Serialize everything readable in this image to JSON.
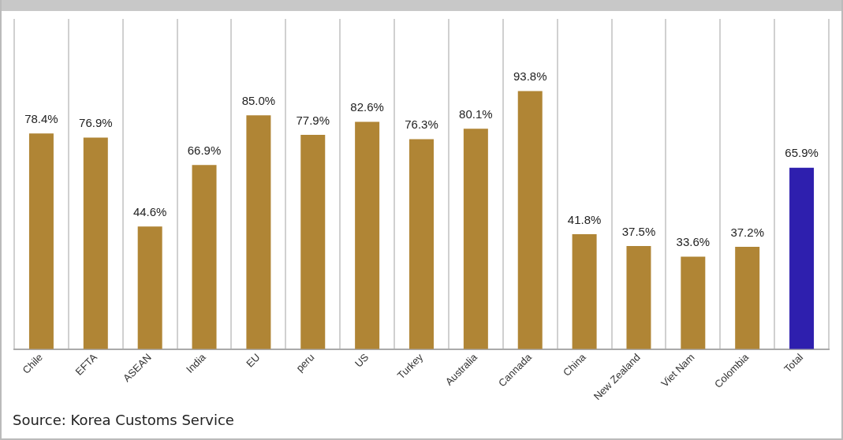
{
  "chart_data": {
    "type": "bar",
    "categories": [
      "Chile",
      "EFTA",
      "ASEAN",
      "India",
      "EU",
      "peru",
      "US",
      "Turkey",
      "Australia",
      "Cannada",
      "China",
      "New Zealand",
      "Viet Nam",
      "Colombia",
      "Total"
    ],
    "values": [
      78.4,
      76.9,
      44.6,
      66.9,
      85.0,
      77.9,
      82.6,
      76.3,
      80.1,
      93.8,
      41.8,
      37.5,
      33.6,
      37.2,
      65.9
    ],
    "colors": [
      "#b08535",
      "#b08535",
      "#b08535",
      "#b08535",
      "#b08535",
      "#b08535",
      "#b08535",
      "#b08535",
      "#b08535",
      "#b08535",
      "#b08535",
      "#b08535",
      "#b08535",
      "#b08535",
      "#2e1fae"
    ],
    "value_labels": [
      "78.4%",
      "76.9%",
      "44.6%",
      "66.9%",
      "85.0%",
      "77.9%",
      "82.6%",
      "76.3%",
      "80.1%",
      "93.8%",
      "41.8%",
      "37.5%",
      "33.6%",
      "37.2%",
      "65.9%"
    ],
    "grid": "x",
    "legend": false,
    "annotations": [
      "Source: Korea Customs Service"
    ]
  }
}
